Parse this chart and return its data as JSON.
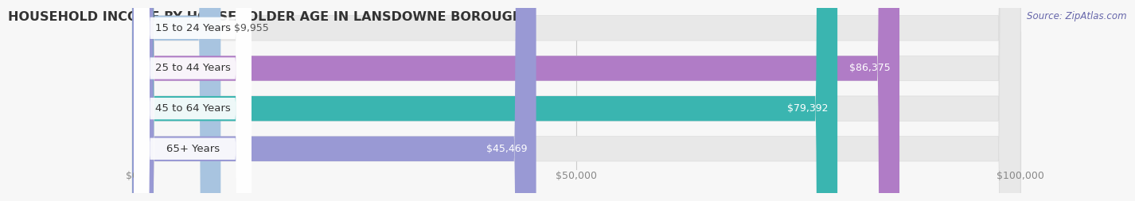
{
  "title": "HOUSEHOLD INCOME BY HOUSEHOLDER AGE IN LANSDOWNE BOROUGH",
  "source": "Source: ZipAtlas.com",
  "categories": [
    "15 to 24 Years",
    "25 to 44 Years",
    "45 to 64 Years",
    "65+ Years"
  ],
  "values": [
    9955,
    86375,
    79392,
    45469
  ],
  "bar_colors": [
    "#a8c4e0",
    "#b07cc6",
    "#3ab5b0",
    "#9999d4"
  ],
  "value_labels": [
    "$9,955",
    "$86,375",
    "$79,392",
    "$45,469"
  ],
  "xlim": [
    0,
    100000
  ],
  "xticks": [
    0,
    50000,
    100000
  ],
  "xticklabels": [
    "$0",
    "$50,000",
    "$100,000"
  ],
  "bar_height": 0.62,
  "background_color": "#f7f7f7",
  "bar_bg_color": "#e8e8e8",
  "title_fontsize": 11.5,
  "label_fontsize": 9.5,
  "value_fontsize": 9,
  "source_fontsize": 8.5,
  "value_inside_color": "#ffffff",
  "value_outside_color": "#555555",
  "label_text_color": "#333333",
  "label_box_color": "#ffffff",
  "grid_color": "#cccccc",
  "tick_color": "#888888"
}
